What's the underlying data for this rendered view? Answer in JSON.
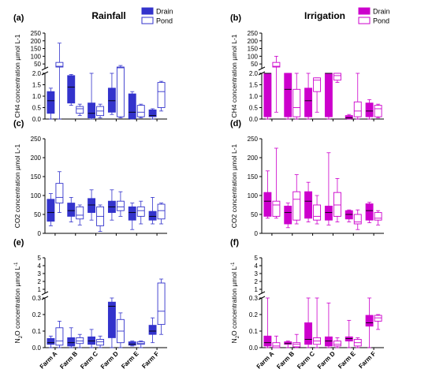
{
  "colors": {
    "rainfall": "#3333cc",
    "irrigation": "#cc00cc"
  },
  "headings": {
    "rainfall": "Rainfall",
    "irrigation": "Irrigation"
  },
  "legend": {
    "drain": "Drain",
    "pond": "Pond"
  },
  "chart_data": [
    {
      "type": "box",
      "panel": "(a)",
      "series_color": "rainfall",
      "ylabel": "CH4 concentration µmol L-1",
      "y_break": {
        "lower": [
          0,
          2.0
        ],
        "upper": [
          20,
          250
        ]
      },
      "yticks_lower": [
        0.0,
        0.5,
        1.0,
        1.5,
        2.0
      ],
      "yticks_upper": [
        50,
        100,
        150,
        200,
        250
      ],
      "categories": [
        "Farm A",
        "Farm B",
        "Farm C",
        "Farm D",
        "Farm E",
        "Farm F"
      ],
      "series": [
        {
          "name": "Drain",
          "filled": true,
          "boxes": [
            {
              "min": 0.0,
              "q1": 0.25,
              "median": 0.8,
              "q3": 1.2,
              "max": 1.35
            },
            {
              "min": 0.6,
              "q1": 0.7,
              "median": 1.4,
              "q3": 1.9,
              "max": 1.95
            },
            {
              "min": 0.0,
              "q1": 0.05,
              "median": 0.25,
              "q3": 0.7,
              "max": 2.0
            },
            {
              "min": 0.2,
              "q1": 0.3,
              "median": 0.8,
              "q3": 1.35,
              "max": 2.0
            },
            {
              "min": 0.0,
              "q1": 0.02,
              "median": 0.3,
              "q3": 1.1,
              "max": 1.2
            },
            {
              "min": 0.0,
              "q1": 0.1,
              "median": 0.15,
              "q3": 0.4,
              "max": 0.45
            }
          ]
        },
        {
          "name": "Pond",
          "filled": false,
          "boxes": [
            {
              "min": 0.0,
              "q1": 30,
              "median": 35,
              "q3": 60,
              "max": 185
            },
            {
              "min": 0.15,
              "q1": 0.25,
              "median": 0.45,
              "q3": 0.55,
              "max": 0.65
            },
            {
              "min": 0.05,
              "q1": 0.15,
              "median": 0.35,
              "q3": 0.55,
              "max": 0.65
            },
            {
              "min": 0.05,
              "q1": 0.1,
              "median": 25,
              "q3": 30,
              "max": 40
            },
            {
              "min": 0.05,
              "q1": 0.1,
              "median": 0.3,
              "q3": 0.6,
              "max": 0.65
            },
            {
              "min": 0.35,
              "q1": 0.5,
              "median": 1.2,
              "q3": 1.6,
              "max": 1.65
            }
          ]
        }
      ]
    },
    {
      "type": "box",
      "panel": "(b)",
      "series_color": "irrigation",
      "ylabel": "CH4 concentration µmol L-1",
      "y_break": {
        "lower": [
          0,
          2.0
        ],
        "upper": [
          20,
          250
        ]
      },
      "yticks_lower": [
        0.0,
        0.5,
        1.0,
        1.5,
        2.0
      ],
      "yticks_upper": [
        50,
        100,
        150,
        200,
        250
      ],
      "categories": [
        "Farm A",
        "Farm B",
        "Farm C",
        "Farm D",
        "Farm E",
        "Farm F"
      ],
      "series": [
        {
          "name": "Drain",
          "filled": true,
          "boxes": [
            {
              "min": 0.0,
              "q1": 0.1,
              "median": 2.0,
              "q3": 2.0,
              "max": 2.0
            },
            {
              "min": 0.0,
              "q1": 0.1,
              "median": 1.3,
              "q3": 2.0,
              "max": 2.0
            },
            {
              "min": 0.0,
              "q1": 0.1,
              "median": 0.8,
              "q3": 1.35,
              "max": 2.0
            },
            {
              "min": 0.0,
              "q1": 0.1,
              "median": 2.0,
              "q3": 2.0,
              "max": 2.0
            },
            {
              "min": 0.0,
              "q1": 0.02,
              "median": 0.05,
              "q3": 0.15,
              "max": 0.2
            },
            {
              "min": 0.0,
              "q1": 0.1,
              "median": 0.35,
              "q3": 0.7,
              "max": 0.85
            }
          ]
        },
        {
          "name": "Pond",
          "filled": false,
          "boxes": [
            {
              "min": 0.3,
              "q1": 30,
              "median": 35,
              "q3": 60,
              "max": 100
            },
            {
              "min": 0.0,
              "q1": 0.1,
              "median": 0.5,
              "q3": 1.3,
              "max": 2.0
            },
            {
              "min": 0.3,
              "q1": 1.2,
              "median": 1.7,
              "q3": 1.8,
              "max": 1.8
            },
            {
              "min": 1.6,
              "q1": 1.7,
              "median": 1.9,
              "q3": 2.0,
              "max": 2.0
            },
            {
              "min": 0.0,
              "q1": 0.1,
              "median": 0.35,
              "q3": 0.75,
              "max": 2.0
            },
            {
              "min": 0.05,
              "q1": 0.1,
              "median": 0.45,
              "q3": 0.6,
              "max": 0.65
            }
          ]
        }
      ]
    },
    {
      "type": "box",
      "panel": "(c)",
      "series_color": "rainfall",
      "ylabel": "CO2 concentration µmol L-1",
      "ylim": [
        0,
        250
      ],
      "yticks": [
        0,
        50,
        100,
        150,
        200,
        250
      ],
      "categories": [
        "Farm A",
        "Farm B",
        "Farm C",
        "Farm D",
        "Farm E",
        "Farm F"
      ],
      "series": [
        {
          "name": "Drain",
          "filled": true,
          "boxes": [
            {
              "min": 20,
              "q1": 32,
              "median": 55,
              "q3": 90,
              "max": 105
            },
            {
              "min": 30,
              "q1": 45,
              "median": 60,
              "q3": 80,
              "max": 95
            },
            {
              "min": 35,
              "q1": 55,
              "median": 75,
              "q3": 92,
              "max": 115
            },
            {
              "min": 35,
              "q1": 55,
              "median": 70,
              "q3": 85,
              "max": 115
            },
            {
              "min": 10,
              "q1": 35,
              "median": 55,
              "q3": 70,
              "max": 80
            },
            {
              "min": 25,
              "q1": 35,
              "median": 45,
              "q3": 58,
              "max": 95
            }
          ]
        },
        {
          "name": "Pond",
          "filled": false,
          "boxes": [
            {
              "min": 55,
              "q1": 80,
              "median": 95,
              "q3": 132,
              "max": 163
            },
            {
              "min": 22,
              "q1": 38,
              "median": 48,
              "q3": 70,
              "max": 75
            },
            {
              "min": 5,
              "q1": 20,
              "median": 45,
              "q3": 70,
              "max": 75
            },
            {
              "min": 45,
              "q1": 60,
              "median": 70,
              "q3": 85,
              "max": 110
            },
            {
              "min": 25,
              "q1": 45,
              "median": 60,
              "q3": 70,
              "max": 85
            },
            {
              "min": 25,
              "q1": 38,
              "median": 60,
              "q3": 77,
              "max": 80
            }
          ]
        }
      ]
    },
    {
      "type": "box",
      "panel": "(d)",
      "series_color": "irrigation",
      "ylabel": "CO2 concentration µmol L-1",
      "ylim": [
        0,
        250
      ],
      "yticks": [
        0,
        50,
        100,
        150,
        200,
        250
      ],
      "categories": [
        "Farm A",
        "Farm B",
        "Farm C",
        "Farm D",
        "Farm E",
        "Farm F"
      ],
      "series": [
        {
          "name": "Drain",
          "filled": true,
          "boxes": [
            {
              "min": 40,
              "q1": 45,
              "median": 85,
              "q3": 108,
              "max": 165
            },
            {
              "min": 15,
              "q1": 25,
              "median": 55,
              "q3": 72,
              "max": 80
            },
            {
              "min": 30,
              "q1": 40,
              "median": 85,
              "q3": 110,
              "max": 135
            },
            {
              "min": 22,
              "q1": 35,
              "median": 55,
              "q3": 72,
              "max": 213
            },
            {
              "min": 30,
              "q1": 38,
              "median": 50,
              "q3": 60,
              "max": 62
            },
            {
              "min": 28,
              "q1": 35,
              "median": 60,
              "q3": 78,
              "max": 82
            }
          ]
        },
        {
          "name": "Pond",
          "filled": false,
          "boxes": [
            {
              "min": 40,
              "q1": 45,
              "median": 75,
              "q3": 85,
              "max": 225
            },
            {
              "min": 25,
              "q1": 35,
              "median": 90,
              "q3": 110,
              "max": 155
            },
            {
              "min": 25,
              "q1": 35,
              "median": 45,
              "q3": 75,
              "max": 100
            },
            {
              "min": 30,
              "q1": 45,
              "median": 75,
              "q3": 108,
              "max": 145
            },
            {
              "min": 10,
              "q1": 25,
              "median": 30,
              "q3": 50,
              "max": 62
            },
            {
              "min": 22,
              "q1": 35,
              "median": 40,
              "q3": 55,
              "max": 60
            }
          ]
        }
      ]
    },
    {
      "type": "box",
      "panel": "(e)",
      "series_color": "rainfall",
      "ylabel": "N2O concentration µmol L-1",
      "y_break": {
        "lower": [
          0,
          0.3
        ],
        "upper": [
          0.5,
          5
        ]
      },
      "yticks_lower": [
        0.0,
        0.1,
        0.2,
        0.3
      ],
      "yticks_upper": [
        1,
        2,
        3,
        4,
        5
      ],
      "categories": [
        "Farm A",
        "Farm B",
        "Farm C",
        "Farm D",
        "Farm E",
        "Farm F"
      ],
      "series": [
        {
          "name": "Drain",
          "filled": true,
          "boxes": [
            {
              "min": 0.0,
              "q1": 0.02,
              "median": 0.03,
              "q3": 0.055,
              "max": 0.07
            },
            {
              "min": 0.0,
              "q1": 0.01,
              "median": 0.03,
              "q3": 0.06,
              "max": 0.12
            },
            {
              "min": 0.0,
              "q1": 0.02,
              "median": 0.04,
              "q3": 0.065,
              "max": 0.11
            },
            {
              "min": 0.0,
              "q1": 0.06,
              "median": 0.25,
              "q3": 0.275,
              "max": 0.3
            },
            {
              "min": 0.01,
              "q1": 0.015,
              "median": 0.02,
              "q3": 0.035,
              "max": 0.04
            },
            {
              "min": 0.03,
              "q1": 0.08,
              "median": 0.1,
              "q3": 0.135,
              "max": 0.18
            }
          ]
        },
        {
          "name": "Pond",
          "filled": false,
          "boxes": [
            {
              "min": 0.0,
              "q1": 0.015,
              "median": 0.04,
              "q3": 0.12,
              "max": 0.16
            },
            {
              "min": 0.0,
              "q1": 0.025,
              "median": 0.04,
              "q3": 0.06,
              "max": 0.08
            },
            {
              "min": 0.0,
              "q1": 0.015,
              "median": 0.035,
              "q3": 0.05,
              "max": 0.07
            },
            {
              "min": 0.0,
              "q1": 0.03,
              "median": 0.1,
              "q3": 0.17,
              "max": 0.21
            },
            {
              "min": 0.0,
              "q1": 0.02,
              "median": 0.025,
              "q3": 0.035,
              "max": 0.04
            },
            {
              "min": 0.08,
              "q1": 0.14,
              "median": 0.22,
              "q3": 1.8,
              "max": 2.3
            }
          ]
        }
      ]
    },
    {
      "type": "box",
      "panel": "(f)",
      "series_color": "irrigation",
      "ylabel": "N2O concentration µmol L-1",
      "y_break": {
        "lower": [
          0,
          0.3
        ],
        "upper": [
          0.5,
          5
        ]
      },
      "yticks_lower": [
        0.0,
        0.1,
        0.2,
        0.3
      ],
      "yticks_upper": [
        1,
        2,
        3,
        4,
        5
      ],
      "categories": [
        "Farm A",
        "Farm B",
        "Farm C",
        "Farm D",
        "Farm E",
        "Farm F"
      ],
      "series": [
        {
          "name": "Drain",
          "filled": true,
          "boxes": [
            {
              "min": 0.0,
              "q1": 0.01,
              "median": 0.03,
              "q3": 0.07,
              "max": 0.3
            },
            {
              "min": 0.0,
              "q1": 0.02,
              "median": 0.025,
              "q3": 0.035,
              "max": 0.04
            },
            {
              "min": 0.0,
              "q1": 0.02,
              "median": 0.05,
              "q3": 0.15,
              "max": 0.3
            },
            {
              "min": 0.0,
              "q1": 0.01,
              "median": 0.04,
              "q3": 0.065,
              "max": 0.27
            },
            {
              "min": 0.0,
              "q1": 0.04,
              "median": 0.055,
              "q3": 0.065,
              "max": 0.165
            },
            {
              "min": 0.0,
              "q1": 0.13,
              "median": 0.15,
              "q3": 0.195,
              "max": 0.3
            }
          ]
        },
        {
          "name": "Pond",
          "filled": false,
          "boxes": [
            {
              "min": 0.0,
              "q1": 0.0,
              "median": 0.01,
              "q3": 0.03,
              "max": 0.07
            },
            {
              "min": 0.0,
              "q1": 0.005,
              "median": 0.02,
              "q3": 0.03,
              "max": 0.08
            },
            {
              "min": 0.0,
              "q1": 0.02,
              "median": 0.04,
              "q3": 0.06,
              "max": 0.3
            },
            {
              "min": 0.0,
              "q1": 0.01,
              "median": 0.02,
              "q3": 0.04,
              "max": 0.06
            },
            {
              "min": 0.0,
              "q1": 0.01,
              "median": 0.03,
              "q3": 0.05,
              "max": 0.06
            },
            {
              "min": 0.11,
              "q1": 0.16,
              "median": 0.18,
              "q3": 0.195,
              "max": 0.2
            }
          ]
        }
      ]
    }
  ]
}
